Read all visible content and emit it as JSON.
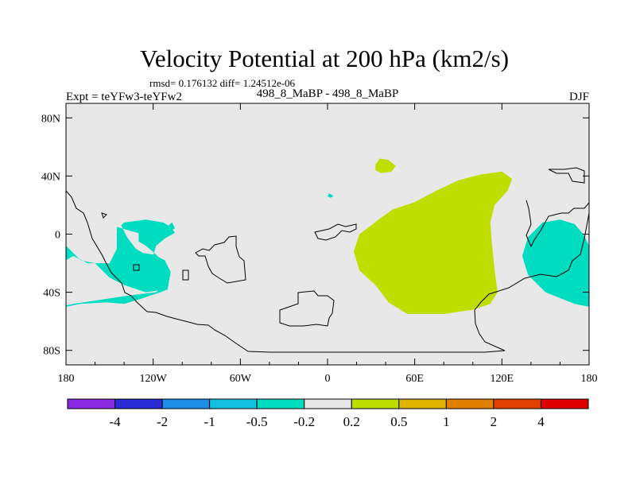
{
  "chart_data": {
    "type": "heatmap",
    "title": "Velocity Potential at 200 hPa (km2/s)",
    "stats": "rmsd= 0.176132 diff= 1.24512e-06",
    "left_label": "Expt = teYFw3-teYFw2",
    "center_label": "498_8_MaBP - 498_8_MaBP",
    "right_label": "DJF",
    "x_axis": {
      "range": [
        -180,
        180
      ],
      "ticks": [
        -180,
        -120,
        -60,
        0,
        60,
        120,
        180
      ],
      "tick_labels": [
        "180",
        "120W",
        "60W",
        "0",
        "60E",
        "120E",
        "180"
      ]
    },
    "y_axis": {
      "range": [
        -90,
        90
      ],
      "ticks": [
        80,
        40,
        0,
        -40,
        -80
      ],
      "tick_labels": [
        "80N",
        "40N",
        "0",
        "40S",
        "80S"
      ]
    },
    "colorbar": {
      "levels": [
        "-4",
        "-2",
        "-1",
        "-0.5",
        "-0.2",
        "0.2",
        "0.5",
        "1",
        "2",
        "4"
      ],
      "colors": [
        "#8a2be2",
        "#2a2ad6",
        "#1e8ee6",
        "#12c0e0",
        "#00dcc0",
        "#e8e8e8",
        "#bede00",
        "#e0b400",
        "#e08000",
        "#e04000",
        "#e00000"
      ]
    },
    "background_color": "#e8e8e8",
    "regions": [
      {
        "name": "anomaly-positive-africa-indian-ocean",
        "level": "0.2 to 0.5",
        "polygon": [
          [
            35,
            10
          ],
          [
            45,
            17
          ],
          [
            60,
            22
          ],
          [
            75,
            30
          ],
          [
            90,
            37
          ],
          [
            105,
            41
          ],
          [
            120,
            43
          ],
          [
            127,
            38
          ],
          [
            124,
            30
          ],
          [
            115,
            20
          ],
          [
            112,
            8
          ],
          [
            113,
            -5
          ],
          [
            115,
            -25
          ],
          [
            117,
            -40
          ],
          [
            112,
            -48
          ],
          [
            100,
            -52
          ],
          [
            80,
            -55
          ],
          [
            55,
            -55
          ],
          [
            42,
            -47
          ],
          [
            33,
            -35
          ],
          [
            22,
            -25
          ],
          [
            18,
            -12
          ],
          [
            22,
            0
          ],
          [
            30,
            6
          ]
        ]
      },
      {
        "name": "anomaly-positive-small-northeast-africa",
        "level": "0.2 to 0.5",
        "polygon": [
          [
            33,
            48
          ],
          [
            36,
            52
          ],
          [
            42,
            51
          ],
          [
            47,
            47
          ],
          [
            44,
            43
          ],
          [
            37,
            42
          ],
          [
            33,
            44
          ]
        ]
      },
      {
        "name": "anomaly-negative-east-pacific",
        "level": "-0.5 to -0.2",
        "polygon": [
          [
            -180,
            -8
          ],
          [
            -170,
            -18
          ],
          [
            -160,
            -20
          ],
          [
            -150,
            -30
          ],
          [
            -140,
            -35
          ],
          [
            -125,
            -40
          ],
          [
            -112,
            -38
          ],
          [
            -108,
            -28
          ],
          [
            -112,
            -20
          ],
          [
            -118,
            -14
          ],
          [
            -125,
            -8
          ],
          [
            -130,
            -5
          ],
          [
            -130,
            5
          ],
          [
            -123,
            5
          ],
          [
            -112,
            4
          ],
          [
            -107,
            8
          ],
          [
            -105,
            4
          ],
          [
            -112,
            0
          ],
          [
            -120,
            -2
          ],
          [
            -135,
            2
          ],
          [
            -145,
            5
          ],
          [
            -145,
            -10
          ],
          [
            -150,
            -20
          ],
          [
            -165,
            -20
          ],
          [
            -175,
            -15
          ],
          [
            -180,
            -18
          ],
          [
            -180,
            -50
          ],
          [
            -170,
            -48
          ],
          [
            -152,
            -47
          ],
          [
            -140,
            -48
          ],
          [
            -130,
            -45
          ],
          [
            -115,
            -40
          ],
          [
            -110,
            -38
          ],
          [
            -108,
            -26
          ],
          [
            -112,
            -18
          ],
          [
            -120,
            -14
          ],
          [
            -127,
            -13
          ],
          [
            -132,
            -10
          ],
          [
            -138,
            -2
          ],
          [
            -142,
            6
          ],
          [
            -140,
            8
          ],
          [
            -125,
            10
          ],
          [
            -113,
            8
          ],
          [
            -108,
            5
          ],
          [
            -105,
            1
          ],
          [
            -112,
            -3
          ],
          [
            -118,
            -8
          ],
          [
            -120,
            -15
          ],
          [
            -115,
            -25
          ],
          [
            -112,
            -35
          ],
          [
            -118,
            -40
          ],
          [
            -135,
            -42
          ],
          [
            -155,
            -45
          ],
          [
            -175,
            -48
          ],
          [
            -180,
            -49
          ]
        ]
      },
      {
        "name": "anomaly-negative-west-pacific",
        "level": "-0.5 to -0.2",
        "polygon": [
          [
            180,
            -50
          ],
          [
            170,
            -48
          ],
          [
            150,
            -40
          ],
          [
            138,
            -28
          ],
          [
            134,
            -15
          ],
          [
            138,
            -2
          ],
          [
            148,
            8
          ],
          [
            160,
            10
          ],
          [
            170,
            7
          ],
          [
            176,
            0
          ],
          [
            180,
            -8
          ]
        ]
      },
      {
        "name": "anomaly-negative-small-atlantic",
        "level": "-0.5 to -0.2",
        "polygon": [
          [
            1,
            28
          ],
          [
            3,
            27
          ],
          [
            4,
            26
          ],
          [
            2,
            25
          ],
          [
            0,
            26
          ]
        ]
      }
    ]
  }
}
